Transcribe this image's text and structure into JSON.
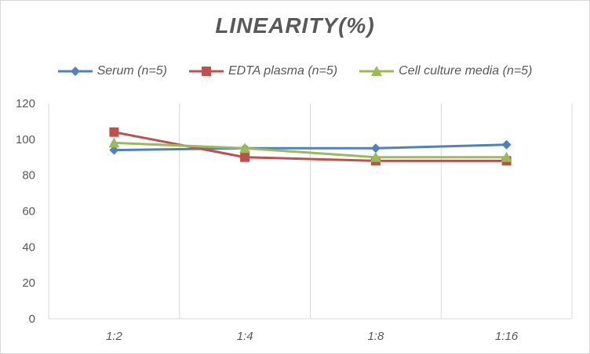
{
  "chart_data": {
    "type": "line",
    "title": "LINEARITY(%)",
    "xlabel": "",
    "ylabel": "",
    "categories": [
      "1:2",
      "1:4",
      "1:8",
      "1:16"
    ],
    "ylim": [
      0,
      120
    ],
    "yticks": [
      "0",
      "20",
      "40",
      "60",
      "80",
      "100",
      "120"
    ],
    "grid": "vertical",
    "legend_position": "top",
    "series": [
      {
        "name": "Serum (n=5)",
        "values": [
          94,
          95,
          95,
          97
        ],
        "color": "#4f81bd",
        "marker": "diamond"
      },
      {
        "name": "EDTA plasma (n=5)",
        "values": [
          104,
          90,
          88,
          88
        ],
        "color": "#c0504d",
        "marker": "square"
      },
      {
        "name": "Cell culture media (n=5)",
        "values": [
          98,
          95,
          90,
          90
        ],
        "color": "#9bbb59",
        "marker": "triangle"
      }
    ]
  }
}
